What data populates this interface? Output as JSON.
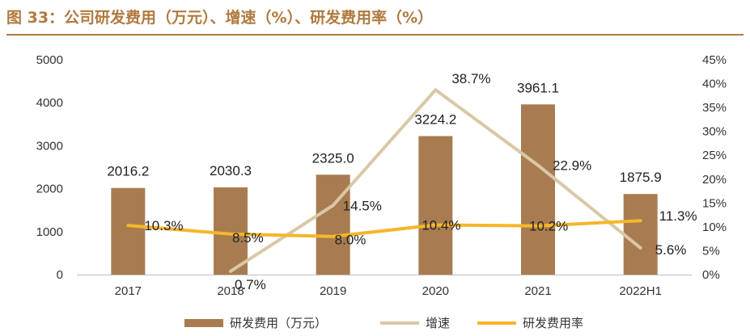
{
  "title": "图 33：公司研发费用（万元）、增速（%）、研发费用率（%）",
  "colors": {
    "bar": "#a87c50",
    "growth": "#d9c8a6",
    "rate": "#f5b62a",
    "accent": "#b07a3e"
  },
  "chart_data": {
    "type": "bar",
    "categories": [
      "2017",
      "2018",
      "2019",
      "2020",
      "2021",
      "2022H1"
    ],
    "y_left": {
      "min": 0,
      "max": 5000,
      "ticks": [
        "0",
        "1000",
        "2000",
        "3000",
        "4000",
        "5000"
      ]
    },
    "y_right": {
      "min": 0,
      "max": 45,
      "ticks": [
        "0%",
        "5%",
        "10%",
        "15%",
        "20%",
        "25%",
        "30%",
        "35%",
        "40%",
        "45%"
      ]
    },
    "grid": false,
    "legend_position": "bottom",
    "series": [
      {
        "name": "研发费用（万元）",
        "type": "bar",
        "axis": "left",
        "values": [
          2016.2,
          2030.3,
          2325.0,
          3224.2,
          3961.1,
          1875.9
        ],
        "labels": [
          "2016.2",
          "2030.3",
          "2325.0",
          "3224.2",
          "3961.1",
          "1875.9"
        ]
      },
      {
        "name": "增速",
        "type": "line",
        "axis": "right",
        "values": [
          null,
          0.7,
          14.5,
          38.7,
          22.9,
          5.6
        ],
        "labels": [
          "",
          "0.7%",
          "14.5%",
          "38.7%",
          "22.9%",
          "5.6%"
        ]
      },
      {
        "name": "研发费用率",
        "type": "line",
        "axis": "right",
        "values": [
          10.3,
          8.5,
          8.0,
          10.4,
          10.2,
          11.3
        ],
        "labels": [
          "10.3%",
          "8.5%",
          "8.0%",
          "10.4%",
          "10.2%",
          "11.3%"
        ]
      }
    ]
  }
}
